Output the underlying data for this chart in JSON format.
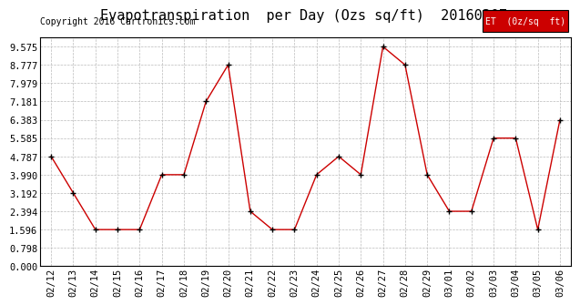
{
  "title": "Evapotranspiration  per Day (Ozs sq/ft)  20160307",
  "copyright": "Copyright 2016 Cartronics.com",
  "legend_label": "ET  (0z/sq  ft)",
  "dates": [
    "02/12",
    "02/13",
    "02/14",
    "02/15",
    "02/16",
    "02/17",
    "02/18",
    "02/19",
    "02/20",
    "02/21",
    "02/22",
    "02/23",
    "02/24",
    "02/25",
    "02/26",
    "02/27",
    "02/28",
    "02/29",
    "03/01",
    "03/02",
    "03/03",
    "03/04",
    "03/05",
    "03/06"
  ],
  "values": [
    4.787,
    3.192,
    1.596,
    1.596,
    1.596,
    3.99,
    3.99,
    7.181,
    8.777,
    2.394,
    1.596,
    1.596,
    3.99,
    4.787,
    3.99,
    9.575,
    8.777,
    3.99,
    2.394,
    2.394,
    5.585,
    5.585,
    1.596,
    6.383
  ],
  "yticks": [
    0.0,
    0.798,
    1.596,
    2.394,
    3.192,
    3.99,
    4.787,
    5.585,
    6.383,
    7.181,
    7.979,
    8.777,
    9.575
  ],
  "ylim": [
    0.0,
    9.975
  ],
  "line_color": "#cc0000",
  "marker_color": "#000000",
  "legend_bg": "#cc0000",
  "legend_text_color": "#ffffff",
  "grid_color": "#bbbbbb",
  "title_fontsize": 11,
  "copyright_fontsize": 7,
  "tick_fontsize": 7.5
}
